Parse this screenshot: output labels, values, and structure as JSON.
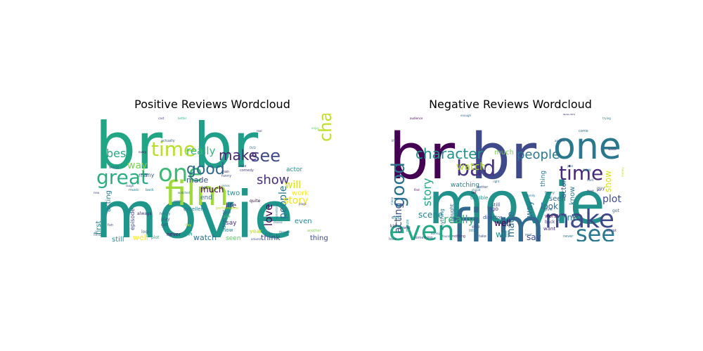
{
  "chart_data": [
    {
      "type": "wordcloud",
      "title": "Positive Reviews Wordcloud",
      "words": [
        {
          "text": "br",
          "weight": 100,
          "color": "#21a685"
        },
        {
          "text": "br",
          "weight": 92,
          "color": "#1f9e89"
        },
        {
          "text": "movie",
          "weight": 98,
          "color": "#1f968b"
        },
        {
          "text": "film",
          "weight": 58,
          "color": "#9fda3a"
        },
        {
          "text": "one",
          "weight": 40,
          "color": "#3bbb75"
        },
        {
          "text": "great",
          "weight": 30,
          "color": "#29af7f"
        },
        {
          "text": "time",
          "weight": 28,
          "color": "#b8de29"
        },
        {
          "text": "good",
          "weight": 22,
          "color": "#31688e"
        },
        {
          "text": "see",
          "weight": 24,
          "color": "#3e4a89"
        },
        {
          "text": "character",
          "weight": 22,
          "color": "#bddf26"
        },
        {
          "text": "make",
          "weight": 20,
          "color": "#482576"
        },
        {
          "text": "show",
          "weight": 18,
          "color": "#46337f"
        },
        {
          "text": "best",
          "weight": 16,
          "color": "#22a884"
        },
        {
          "text": "really",
          "weight": 15,
          "color": "#35b779"
        },
        {
          "text": "love",
          "weight": 15,
          "color": "#440154"
        },
        {
          "text": "people",
          "weight": 14,
          "color": "#2c728e"
        },
        {
          "text": "story",
          "weight": 14,
          "color": "#f1e51d"
        },
        {
          "text": "will",
          "weight": 14,
          "color": "#d8e219"
        },
        {
          "text": "way",
          "weight": 14,
          "color": "#7ad151"
        },
        {
          "text": "much",
          "weight": 12,
          "color": "#440154"
        },
        {
          "text": "made",
          "weight": 11,
          "color": "#3b528b"
        },
        {
          "text": "two",
          "weight": 10,
          "color": "#21918c"
        },
        {
          "text": "life",
          "weight": 10,
          "color": "#482878"
        },
        {
          "text": "acting",
          "weight": 10,
          "color": "#2a788e"
        },
        {
          "text": "first",
          "weight": 10,
          "color": "#25858e"
        },
        {
          "text": "scene",
          "weight": 10,
          "color": "#1e9b8a"
        },
        {
          "text": "work",
          "weight": 10,
          "color": "#fde725"
        },
        {
          "text": "think",
          "weight": 11,
          "color": "#3e4989"
        },
        {
          "text": "well",
          "weight": 11,
          "color": "#fde725"
        },
        {
          "text": "watch",
          "weight": 11,
          "color": "#2d708e"
        },
        {
          "text": "still",
          "weight": 10,
          "color": "#21908d"
        },
        {
          "text": "thing",
          "weight": 10,
          "color": "#3e4989"
        },
        {
          "text": "even",
          "weight": 10,
          "color": "#26828e"
        },
        {
          "text": "seen",
          "weight": 9,
          "color": "#5ec962"
        },
        {
          "text": "actor",
          "weight": 9,
          "color": "#20928c"
        },
        {
          "text": "end",
          "weight": 9,
          "color": "#2c728e"
        },
        {
          "text": "say",
          "weight": 9,
          "color": "#46327e"
        },
        {
          "text": "year",
          "weight": 8,
          "color": "#b5de2b"
        },
        {
          "text": "episode",
          "weight": 8,
          "color": "#414487"
        },
        {
          "text": "many",
          "weight": 8,
          "color": "#3b528b"
        },
        {
          "text": "excellent",
          "weight": 7,
          "color": "#2a788e"
        },
        {
          "text": "never",
          "weight": 7,
          "color": "#471365"
        },
        {
          "text": "now",
          "weight": 7,
          "color": "#287d8e"
        },
        {
          "text": "director",
          "weight": 7,
          "color": "#355f8d"
        },
        {
          "text": "always",
          "weight": 6,
          "color": "#482475"
        },
        {
          "text": "play",
          "weight": 6,
          "color": "#3b528b"
        },
        {
          "text": "look",
          "weight": 6,
          "color": "#2e6f8e"
        },
        {
          "text": "plot",
          "weight": 6,
          "color": "#20a386"
        },
        {
          "text": "quite",
          "weight": 6,
          "color": "#440154"
        },
        {
          "text": "give",
          "weight": 5,
          "color": "#3fbc73"
        },
        {
          "text": "find",
          "weight": 6,
          "color": "#2c728e"
        },
        {
          "text": "got",
          "weight": 6,
          "color": "#3e4a89"
        },
        {
          "text": "music",
          "weight": 5,
          "color": "#25848e"
        },
        {
          "text": "fun",
          "weight": 5,
          "color": "#3a548c"
        },
        {
          "text": "family",
          "weight": 5,
          "color": "#2a788e"
        },
        {
          "text": "comedy",
          "weight": 5,
          "color": "#443a83"
        },
        {
          "text": "performance",
          "weight": 5,
          "color": "#bade28"
        },
        {
          "text": "another",
          "weight": 5,
          "color": "#7fd34e"
        },
        {
          "text": "feel",
          "weight": 5,
          "color": "#2a778e"
        },
        {
          "text": "funny",
          "weight": 5,
          "color": "#3b528b"
        },
        {
          "text": "role",
          "weight": 5,
          "color": "#46307e"
        },
        {
          "text": "man",
          "weight": 5,
          "color": "#482878"
        },
        {
          "text": "day",
          "weight": 5,
          "color": "#d5e21a"
        },
        {
          "text": "back",
          "weight": 5,
          "color": "#24868e"
        },
        {
          "text": "actually",
          "weight": 5,
          "color": "#33638d"
        },
        {
          "text": "world",
          "weight": 5,
          "color": "#31688e"
        },
        {
          "text": "better",
          "weight": 4,
          "color": "#2fb47c"
        },
        {
          "text": "every",
          "weight": 4,
          "color": "#440154"
        },
        {
          "text": "classic",
          "weight": 4,
          "color": "#2f6c8e"
        },
        {
          "text": "series",
          "weight": 4,
          "color": "#2a788e"
        },
        {
          "text": "real",
          "weight": 4,
          "color": "#46327e"
        },
        {
          "text": "bad",
          "weight": 4,
          "color": "#3e4989"
        },
        {
          "text": "come",
          "weight": 4,
          "color": "#2c728e"
        },
        {
          "text": "new",
          "weight": 4,
          "color": "#3e4989"
        },
        {
          "text": "something",
          "weight": 4,
          "color": "#2a788e"
        },
        {
          "text": "laugh",
          "weight": 4,
          "color": "#414487"
        },
        {
          "text": "seem",
          "weight": 4,
          "color": "#38598c"
        },
        {
          "text": "thought",
          "weight": 4,
          "color": "#2c728e"
        },
        {
          "text": "place",
          "weight": 4,
          "color": "#443983"
        },
        {
          "text": "enjoy",
          "weight": 4,
          "color": "#5ec962"
        },
        {
          "text": "around",
          "weight": 4,
          "color": "#3b528b"
        },
        {
          "text": "cast",
          "weight": 4,
          "color": "#46307e"
        },
        {
          "text": "watched",
          "weight": 4,
          "color": "#2d708e"
        },
        {
          "text": "DVD",
          "weight": 4,
          "color": "#2a788e"
        }
      ]
    },
    {
      "type": "wordcloud",
      "title": "Negative Reviews Wordcloud",
      "words": [
        {
          "text": "br",
          "weight": 100,
          "color": "#440154"
        },
        {
          "text": "br",
          "weight": 94,
          "color": "#3e4a89"
        },
        {
          "text": "movie",
          "weight": 98,
          "color": "#21918c"
        },
        {
          "text": "film",
          "weight": 70,
          "color": "#31688e"
        },
        {
          "text": "one",
          "weight": 52,
          "color": "#2a788e"
        },
        {
          "text": "even",
          "weight": 34,
          "color": "#22a884"
        },
        {
          "text": "bad",
          "weight": 28,
          "color": "#46337f"
        },
        {
          "text": "make",
          "weight": 27,
          "color": "#3e4989"
        },
        {
          "text": "see",
          "weight": 22,
          "color": "#2a788e"
        },
        {
          "text": "good",
          "weight": 24,
          "color": "#2c728e"
        },
        {
          "text": "time",
          "weight": 22,
          "color": "#482878"
        },
        {
          "text": "character",
          "weight": 18,
          "color": "#21918c"
        },
        {
          "text": "people",
          "weight": 16,
          "color": "#2a788e"
        },
        {
          "text": "really",
          "weight": 15,
          "color": "#35b779"
        },
        {
          "text": "story",
          "weight": 15,
          "color": "#22a884"
        },
        {
          "text": "acting",
          "weight": 14,
          "color": "#3b528b"
        },
        {
          "text": "watch",
          "weight": 14,
          "color": "#b5de2b"
        },
        {
          "text": "made",
          "weight": 13,
          "color": "#31688e"
        },
        {
          "text": "plot",
          "weight": 13,
          "color": "#3e4a89"
        },
        {
          "text": "show",
          "weight": 12,
          "color": "#d8e219"
        },
        {
          "text": "scene",
          "weight": 12,
          "color": "#25848e"
        },
        {
          "text": "way",
          "weight": 12,
          "color": "#2c728e"
        },
        {
          "text": "think",
          "weight": 12,
          "color": "#26828e"
        },
        {
          "text": "look",
          "weight": 12,
          "color": "#31688e"
        },
        {
          "text": "will",
          "weight": 12,
          "color": "#21908d"
        },
        {
          "text": "well",
          "weight": 12,
          "color": "#440154"
        },
        {
          "text": "say",
          "weight": 12,
          "color": "#3e4a89"
        },
        {
          "text": "seen",
          "weight": 10,
          "color": "#2c728e"
        },
        {
          "text": "actor",
          "weight": 10,
          "color": "#3b528b"
        },
        {
          "text": "know",
          "weight": 10,
          "color": "#2a788e"
        },
        {
          "text": "much",
          "weight": 10,
          "color": "#7ad151"
        },
        {
          "text": "watching",
          "weight": 9,
          "color": "#2a788e"
        },
        {
          "text": "thing",
          "weight": 9,
          "color": "#2d708e"
        },
        {
          "text": "go",
          "weight": 8,
          "color": "#46327e"
        },
        {
          "text": "director",
          "weight": 7,
          "color": "#3b528b"
        },
        {
          "text": "thought",
          "weight": 7,
          "color": "#31688e"
        },
        {
          "text": "anything",
          "weight": 7,
          "color": "#2a788e"
        },
        {
          "text": "terrible",
          "weight": 7,
          "color": "#21918c"
        },
        {
          "text": "want",
          "weight": 7,
          "color": "#46307e"
        },
        {
          "text": "end",
          "weight": 7,
          "color": "#2a788e"
        },
        {
          "text": "kid",
          "weight": 6,
          "color": "#482878"
        },
        {
          "text": "still",
          "weight": 7,
          "color": "#3e4989"
        },
        {
          "text": "worst",
          "weight": 7,
          "color": "#440154"
        },
        {
          "text": "give",
          "weight": 6,
          "color": "#2c728e"
        },
        {
          "text": "got",
          "weight": 6,
          "color": "#31688e"
        },
        {
          "text": "guy",
          "weight": 6,
          "color": "#3b528b"
        },
        {
          "text": "saw",
          "weight": 6,
          "color": "#2a788e"
        },
        {
          "text": "back",
          "weight": 6,
          "color": "#414487"
        },
        {
          "text": "first",
          "weight": 5,
          "color": "#3e4989"
        },
        {
          "text": "script",
          "weight": 5,
          "color": "#46337f"
        },
        {
          "text": "funny",
          "weight": 5,
          "color": "#2a788e"
        },
        {
          "text": "real",
          "weight": 5,
          "color": "#31688e"
        },
        {
          "text": "lot",
          "weight": 5,
          "color": "#440154"
        },
        {
          "text": "better",
          "weight": 5,
          "color": "#3b528b"
        },
        {
          "text": "little",
          "weight": 5,
          "color": "#2c728e"
        },
        {
          "text": "nothing",
          "weight": 5,
          "color": "#482878"
        },
        {
          "text": "love",
          "weight": 5,
          "color": "#31688e"
        },
        {
          "text": "something",
          "weight": 5,
          "color": "#3e4a89"
        },
        {
          "text": "never",
          "weight": 5,
          "color": "#2a788e"
        },
        {
          "text": "come",
          "weight": 5,
          "color": "#2d708e"
        },
        {
          "text": "take",
          "weight": 5,
          "color": "#3b528b"
        },
        {
          "text": "minute",
          "weight": 5,
          "color": "#21908d"
        },
        {
          "text": "friend",
          "weight": 5,
          "color": "#46327e"
        },
        {
          "text": "boring",
          "weight": 4,
          "color": "#31688e"
        },
        {
          "text": "many",
          "weight": 4,
          "color": "#2a788e"
        },
        {
          "text": "find",
          "weight": 4,
          "color": "#440154"
        },
        {
          "text": "another",
          "weight": 4,
          "color": "#3b528b"
        },
        {
          "text": "joke",
          "weight": 4,
          "color": "#2c728e"
        },
        {
          "text": "hard",
          "weight": 4,
          "color": "#31688e"
        },
        {
          "text": "put",
          "weight": 4,
          "color": "#3e4989"
        },
        {
          "text": "trying",
          "weight": 4,
          "color": "#2a788e"
        },
        {
          "text": "waste",
          "weight": 4,
          "color": "#46337f"
        },
        {
          "text": "money",
          "weight": 4,
          "color": "#b5de2b"
        },
        {
          "text": "least",
          "weight": 4,
          "color": "#482878"
        },
        {
          "text": "family",
          "weight": 4,
          "color": "#31688e"
        },
        {
          "text": "going",
          "weight": 4,
          "color": "#3b528b"
        },
        {
          "text": "right",
          "weight": 4,
          "color": "#2a788e"
        },
        {
          "text": "audience",
          "weight": 4,
          "color": "#440154"
        },
        {
          "text": "enough",
          "weight": 4,
          "color": "#31688e"
        },
        {
          "text": "stupid",
          "weight": 4,
          "color": "#2c728e"
        },
        {
          "text": "found",
          "weight": 4,
          "color": "#3b528b"
        },
        {
          "text": "watched",
          "weight": 4,
          "color": "#46327e"
        },
        {
          "text": "life",
          "weight": 4,
          "color": "#3e4a89"
        }
      ]
    }
  ]
}
